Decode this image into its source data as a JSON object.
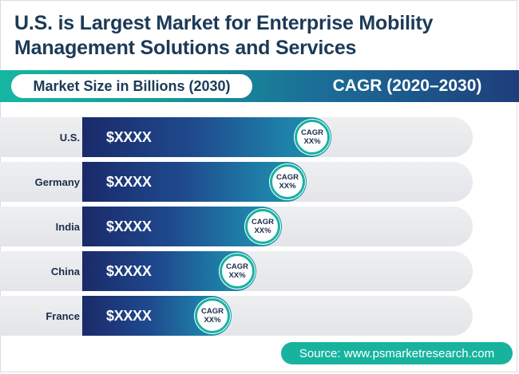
{
  "title": {
    "line1": "U.S. is Largest Market for Enterprise Mobility",
    "line2": "Management Solutions and Services"
  },
  "header": {
    "left_label": "Market Size in Billions (2030)",
    "right_label": "CAGR (2020–2030)"
  },
  "source": "Source: www.psmarketresearch.com",
  "colors": {
    "bar_dark": "#1a2a6a",
    "bar_light": "#1c97ae",
    "accent_teal": "#17b39f",
    "title_navy": "#1c3a57",
    "track_gray": "#e6e8eb"
  },
  "chart_data": {
    "type": "bar",
    "orientation": "horizontal",
    "categories": [
      "U.S.",
      "Germany",
      "India",
      "China",
      "France"
    ],
    "value_labels": [
      "$XXXX",
      "$XXXX",
      "$XXXX",
      "$XXXX",
      "$XXXX"
    ],
    "relative_values": [
      1.0,
      0.9,
      0.8,
      0.7,
      0.6
    ],
    "badges": [
      {
        "line1": "CAGR",
        "line2": "XX%"
      },
      {
        "line1": "CAGR",
        "line2": "XX%"
      },
      {
        "line1": "CAGR",
        "line2": "XX%"
      },
      {
        "line1": "CAGR",
        "line2": "XX%"
      },
      {
        "line1": "CAGR",
        "line2": "XX%"
      }
    ]
  }
}
